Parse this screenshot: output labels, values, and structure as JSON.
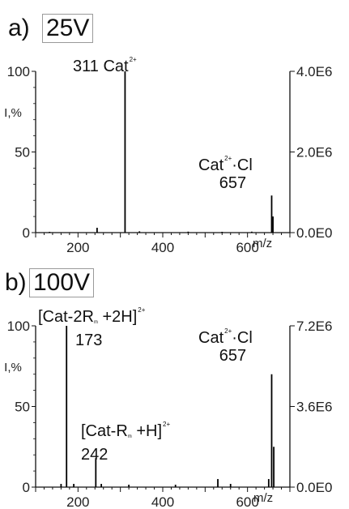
{
  "panels": {
    "a": {
      "label": "a)",
      "voltage": "25V",
      "ann_311_num": "311",
      "ann_311_text": "Cat",
      "ann_311_charge": "2+",
      "ann_657_text": "Cat",
      "ann_657_charge": "2+",
      "ann_657_ion": "·Cl",
      "ann_657_num": "657"
    },
    "b": {
      "label": "b)",
      "voltage": "100V",
      "ann_173_line1_a": "[Cat-2R",
      "ann_173_sub": "m",
      "ann_173_line1_b": " +2H]",
      "ann_173_charge": "2+",
      "ann_173_num": "173",
      "ann_242_line1_a": "[Cat-R",
      "ann_242_sub": "m",
      "ann_242_line1_b": " +H]",
      "ann_242_charge": "2+",
      "ann_242_num": "242",
      "ann_657_text": "Cat",
      "ann_657_charge": "2+",
      "ann_657_ion": "·Cl",
      "ann_657_num": "657"
    }
  },
  "chart_data": [
    {
      "type": "bar",
      "xlabel": "m/z",
      "ylabel": "I,%",
      "xlim": [
        100,
        700
      ],
      "ylim": [
        0,
        100
      ],
      "y2lim": [
        0,
        4000000
      ],
      "xticks": [
        200,
        400,
        600
      ],
      "yticks": [
        0,
        50,
        100
      ],
      "y2ticks": [
        "0.0E0",
        "2.0E6",
        "4.0E6"
      ],
      "x": [
        133,
        245,
        311,
        345,
        460,
        540,
        610,
        657,
        660
      ],
      "values": [
        0.5,
        3,
        100,
        0.8,
        0.6,
        0.5,
        0.6,
        23,
        10
      ]
    },
    {
      "type": "bar",
      "xlabel": "m/z",
      "ylabel": "I,%",
      "xlim": [
        100,
        700
      ],
      "ylim": [
        0,
        100
      ],
      "y2lim": [
        0,
        7200000
      ],
      "xticks": [
        200,
        400,
        600
      ],
      "yticks": [
        0,
        50,
        100
      ],
      "y2ticks": [
        "0.0E0",
        "3.6E6",
        "7.2E6"
      ],
      "x": [
        160,
        173,
        190,
        242,
        255,
        320,
        430,
        530,
        560,
        650,
        657,
        662
      ],
      "values": [
        2,
        100,
        2,
        18,
        2,
        1.5,
        1.5,
        5,
        2,
        5,
        70,
        25
      ]
    }
  ]
}
